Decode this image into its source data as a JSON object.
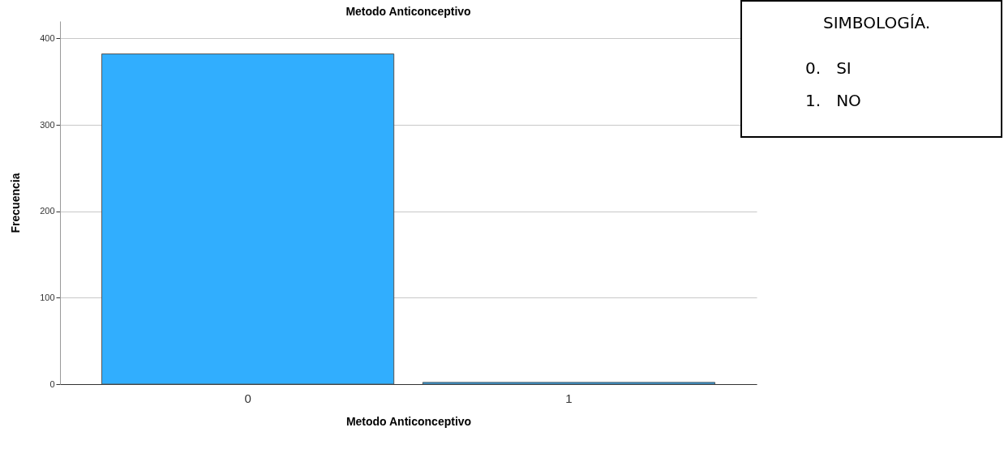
{
  "chart_data": {
    "type": "bar",
    "title": "Metodo Anticonceptivo",
    "xlabel": "Metodo Anticonceptivo",
    "ylabel": "Frecuencia",
    "categories": [
      "0",
      "1"
    ],
    "values": [
      382,
      2
    ],
    "color": "#31aefe",
    "ylim": [
      0,
      420
    ],
    "yticks": [
      0,
      100,
      200,
      300,
      400
    ],
    "grid": "y",
    "annotations": [
      "SIMBOLOGÍA.",
      "0.   SI",
      "1.   NO"
    ]
  }
}
